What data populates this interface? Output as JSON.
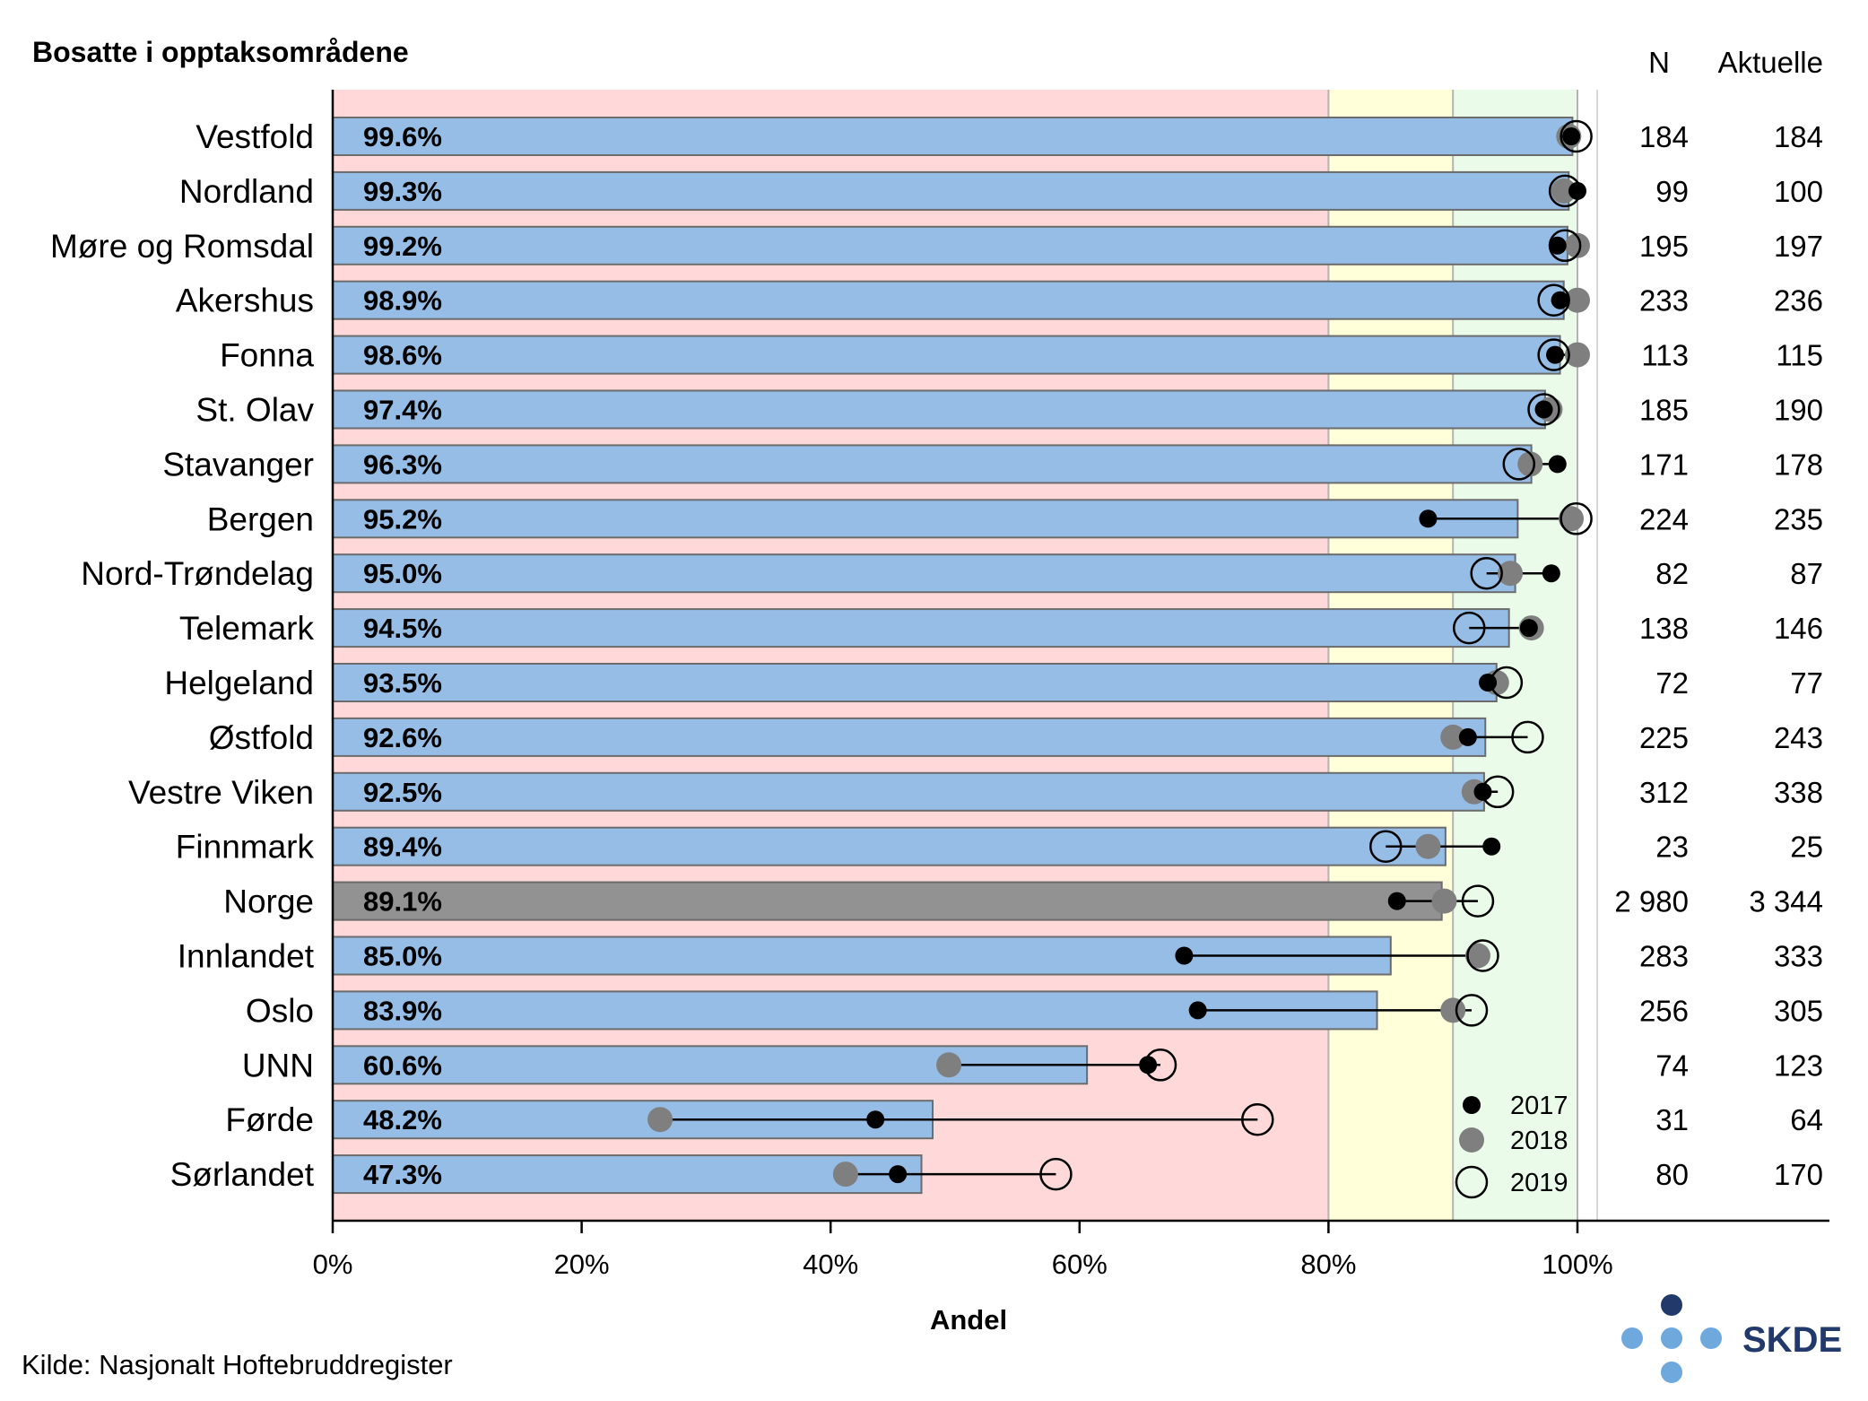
{
  "chart_data": {
    "type": "bar",
    "title": "Bosatte i opptaksområdene",
    "xlabel": "Andel",
    "source": "Kilde: Nasjonalt Hoftebruddregister",
    "logo": "SKDE",
    "column_headers": {
      "n": "N",
      "aktuelle": "Aktuelle"
    },
    "xlim": [
      0,
      120
    ],
    "xticks": [
      0,
      20,
      40,
      60,
      80,
      100
    ],
    "xtick_labels": [
      "0%",
      "20%",
      "40%",
      "60%",
      "80%",
      "100%"
    ],
    "target_zones": [
      {
        "from": 0,
        "to": 80,
        "color": "#ffd9d9"
      },
      {
        "from": 80,
        "to": 90,
        "color": "#ffffd9"
      },
      {
        "from": 90,
        "to": 100,
        "color": "#eafbea"
      }
    ],
    "bar_color": "#95bde6",
    "highlight_color": "#929292",
    "legend": [
      {
        "label": "2017",
        "marker": "filled-black"
      },
      {
        "label": "2018",
        "marker": "filled-gray"
      },
      {
        "label": "2019",
        "marker": "open-circle"
      }
    ],
    "categories": [
      {
        "name": "Vestfold",
        "value": 99.6,
        "label": "99.6%",
        "y2017": 99.5,
        "y2018": 99.3,
        "y2019": 99.9,
        "n": "184",
        "aktuelle": "184",
        "highlight": false
      },
      {
        "name": "Nordland",
        "value": 99.3,
        "label": "99.3%",
        "y2017": 100.0,
        "y2018": 98.9,
        "y2019": 99.0,
        "n": "99",
        "aktuelle": "100",
        "highlight": false
      },
      {
        "name": "Møre og Romsdal",
        "value": 99.2,
        "label": "99.2%",
        "y2017": 98.4,
        "y2018": 100.0,
        "y2019": 99.0,
        "n": "195",
        "aktuelle": "197",
        "highlight": false
      },
      {
        "name": "Akershus",
        "value": 98.9,
        "label": "98.9%",
        "y2017": 98.6,
        "y2018": 100.0,
        "y2019": 98.1,
        "n": "233",
        "aktuelle": "236",
        "highlight": false
      },
      {
        "name": "Fonna",
        "value": 98.6,
        "label": "98.6%",
        "y2017": 98.2,
        "y2018": 100.0,
        "y2019": 98.1,
        "n": "113",
        "aktuelle": "115",
        "highlight": false
      },
      {
        "name": "St. Olav",
        "value": 97.4,
        "label": "97.4%",
        "y2017": 97.3,
        "y2018": 97.8,
        "y2019": 97.3,
        "n": "185",
        "aktuelle": "190",
        "highlight": false
      },
      {
        "name": "Stavanger",
        "value": 96.3,
        "label": "96.3%",
        "y2017": 98.4,
        "y2018": 96.2,
        "y2019": 95.3,
        "n": "171",
        "aktuelle": "178",
        "highlight": false
      },
      {
        "name": "Bergen",
        "value": 95.2,
        "label": "95.2%",
        "y2017": 88.0,
        "y2018": 99.5,
        "y2019": 99.9,
        "n": "224",
        "aktuelle": "235",
        "highlight": false
      },
      {
        "name": "Nord-Trøndelag",
        "value": 95.0,
        "label": "95.0%",
        "y2017": 97.9,
        "y2018": 94.6,
        "y2019": 92.7,
        "n": "82",
        "aktuelle": "87",
        "highlight": false
      },
      {
        "name": "Telemark",
        "value": 94.5,
        "label": "94.5%",
        "y2017": 96.1,
        "y2018": 96.3,
        "y2019": 91.3,
        "n": "138",
        "aktuelle": "146",
        "highlight": false
      },
      {
        "name": "Helgeland",
        "value": 93.5,
        "label": "93.5%",
        "y2017": 92.8,
        "y2018": 93.5,
        "y2019": 94.3,
        "n": "72",
        "aktuelle": "77",
        "highlight": false
      },
      {
        "name": "Østfold",
        "value": 92.6,
        "label": "92.6%",
        "y2017": 91.2,
        "y2018": 90.0,
        "y2019": 96.0,
        "n": "225",
        "aktuelle": "243",
        "highlight": false
      },
      {
        "name": "Vestre Viken",
        "value": 92.5,
        "label": "92.5%",
        "y2017": 92.4,
        "y2018": 91.7,
        "y2019": 93.6,
        "n": "312",
        "aktuelle": "338",
        "highlight": false
      },
      {
        "name": "Finnmark",
        "value": 89.4,
        "label": "89.4%",
        "y2017": 93.1,
        "y2018": 88.0,
        "y2019": 84.6,
        "n": "23",
        "aktuelle": "25",
        "highlight": false
      },
      {
        "name": "Norge",
        "value": 89.1,
        "label": "89.1%",
        "y2017": 85.5,
        "y2018": 89.3,
        "y2019": 92.0,
        "n": "2 980",
        "aktuelle": "3 344",
        "highlight": true
      },
      {
        "name": "Innlandet",
        "value": 85.0,
        "label": "85.0%",
        "y2017": 68.4,
        "y2018": 92.0,
        "y2019": 92.4,
        "n": "283",
        "aktuelle": "333",
        "highlight": false
      },
      {
        "name": "Oslo",
        "value": 83.9,
        "label": "83.9%",
        "y2017": 69.5,
        "y2018": 90.0,
        "y2019": 91.5,
        "n": "256",
        "aktuelle": "305",
        "highlight": false
      },
      {
        "name": "UNN",
        "value": 60.6,
        "label": "60.6%",
        "y2017": 65.5,
        "y2018": 49.5,
        "y2019": 66.5,
        "n": "74",
        "aktuelle": "123",
        "highlight": false
      },
      {
        "name": "Førde",
        "value": 48.2,
        "label": "48.2%",
        "y2017": 43.6,
        "y2018": 26.3,
        "y2019": 74.3,
        "n": "31",
        "aktuelle": "64",
        "highlight": false
      },
      {
        "name": "Sørlandet",
        "value": 47.3,
        "label": "47.3%",
        "y2017": 45.4,
        "y2018": 41.2,
        "y2019": 58.1,
        "n": "80",
        "aktuelle": "170",
        "highlight": false
      }
    ]
  }
}
